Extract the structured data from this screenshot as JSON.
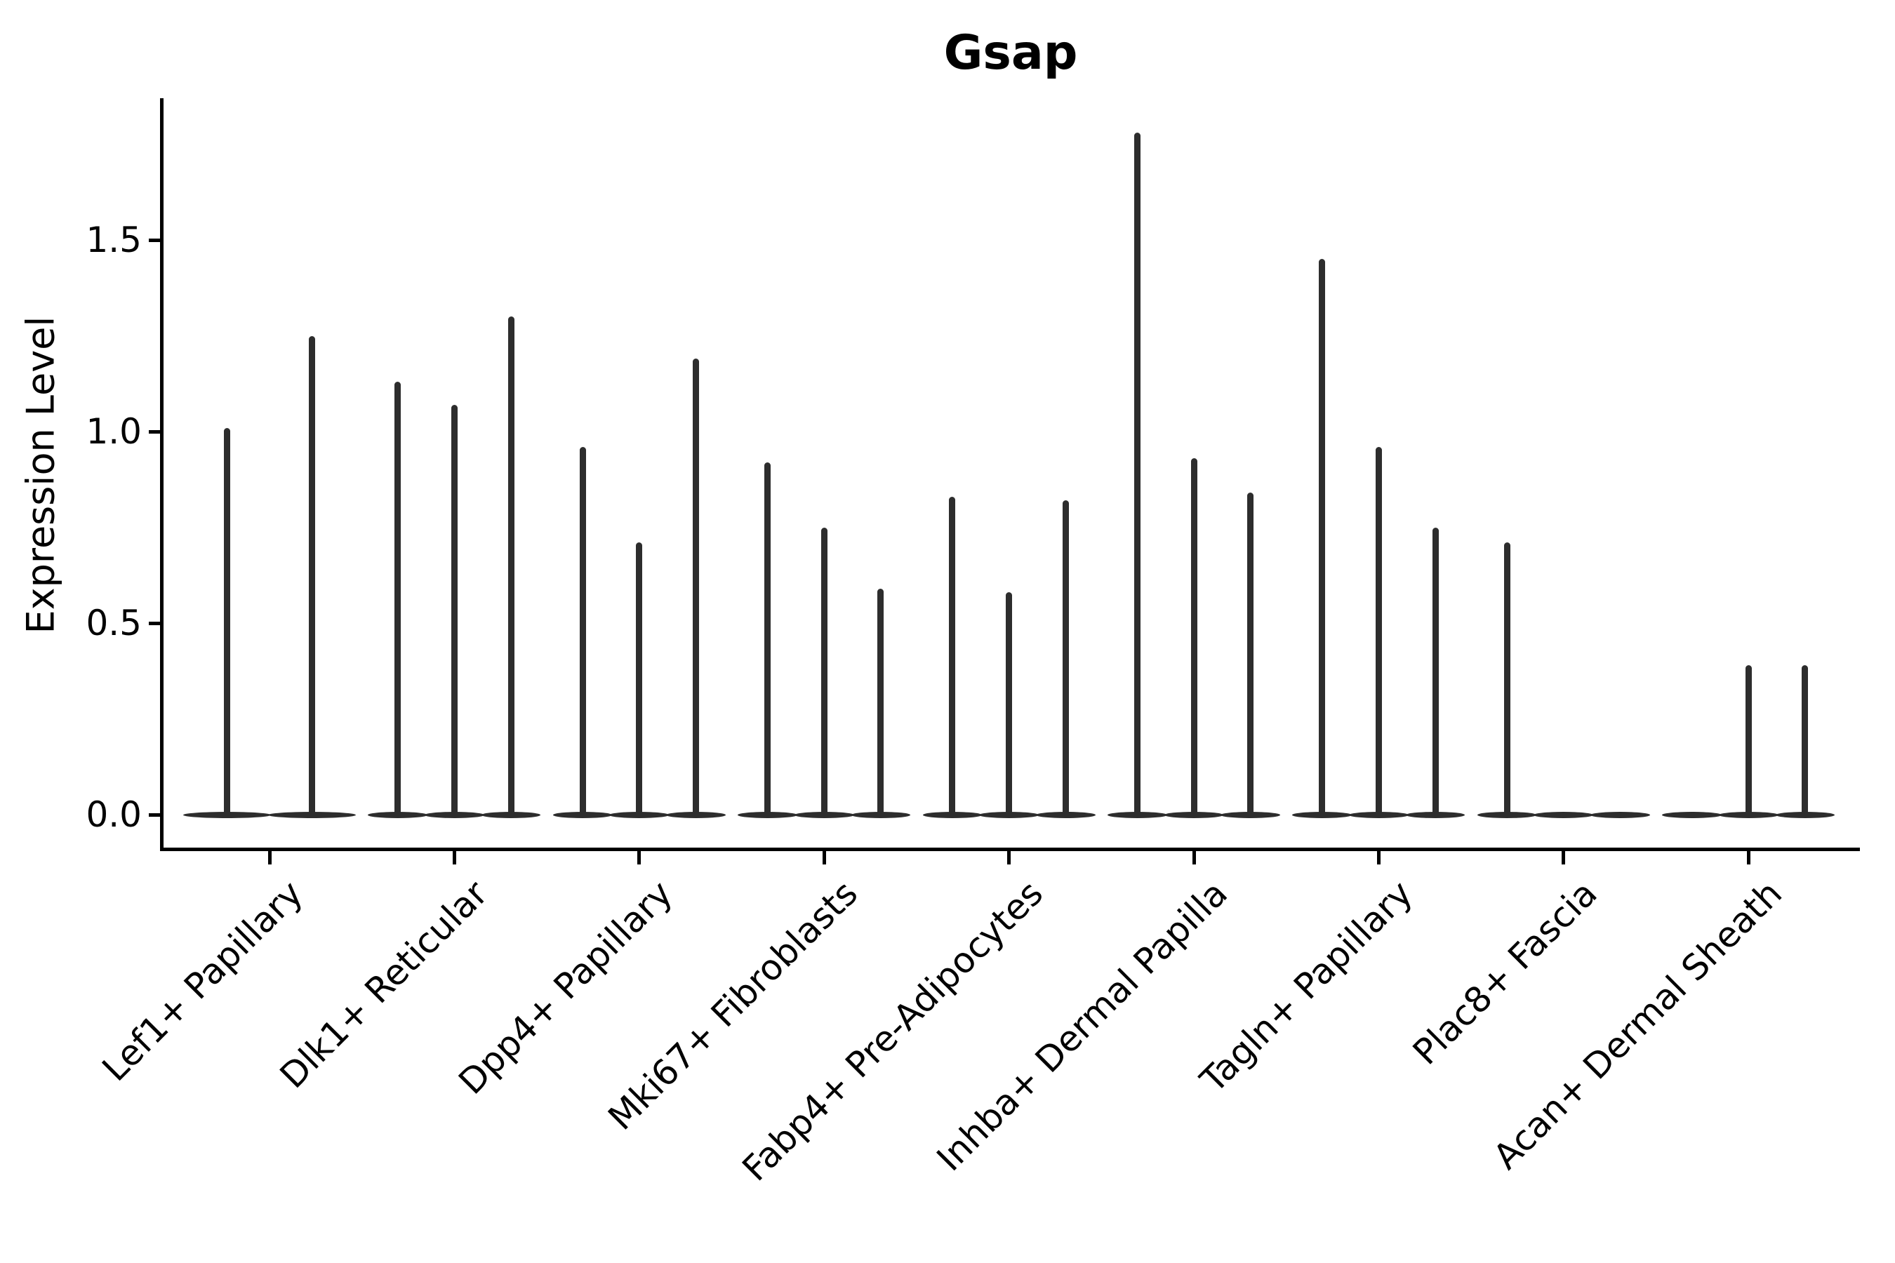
{
  "chart_data": {
    "type": "violin",
    "title": "Gsap",
    "xlabel": "",
    "ylabel": "Expression Level",
    "yticks": [
      0.0,
      0.5,
      1.0,
      1.5
    ],
    "ylim": [
      -0.1,
      1.87
    ],
    "grid": false,
    "legend": "none",
    "note": "Stacked-violin style gene expression plot; each cluster shows thin needle violins (one per sample), flat at 0 with narrow spikes up to the max expression value.",
    "groups": [
      {
        "label": "Lef1+ Papillary",
        "violins": [
          1.01,
          1.25
        ]
      },
      {
        "label": "Dlk1+ Reticular",
        "violins": [
          1.13,
          1.07,
          1.3
        ]
      },
      {
        "label": "Dpp4+ Papillary",
        "violins": [
          0.96,
          0.71,
          1.19
        ]
      },
      {
        "label": "Mki67+ Fibroblasts",
        "violins": [
          0.92,
          0.75,
          0.59
        ]
      },
      {
        "label": "Fabp4+ Pre-Adipocytes",
        "violins": [
          0.83,
          0.58,
          0.82
        ]
      },
      {
        "label": "Inhba+ Dermal Papilla",
        "violins": [
          1.78,
          0.93,
          0.84
        ]
      },
      {
        "label": "Tagln+ Papillary",
        "violins": [
          1.45,
          0.96,
          0.75
        ]
      },
      {
        "label": "Plac8+ Fascia",
        "violins": [
          0.71,
          0,
          0
        ]
      },
      {
        "label": "Acan+ Dermal Sheath",
        "violins": [
          0,
          0.39,
          0.39
        ]
      }
    ],
    "colors": {
      "ink": "#000000",
      "violin_fill": "#2d2d2d",
      "background": "#ffffff"
    }
  }
}
